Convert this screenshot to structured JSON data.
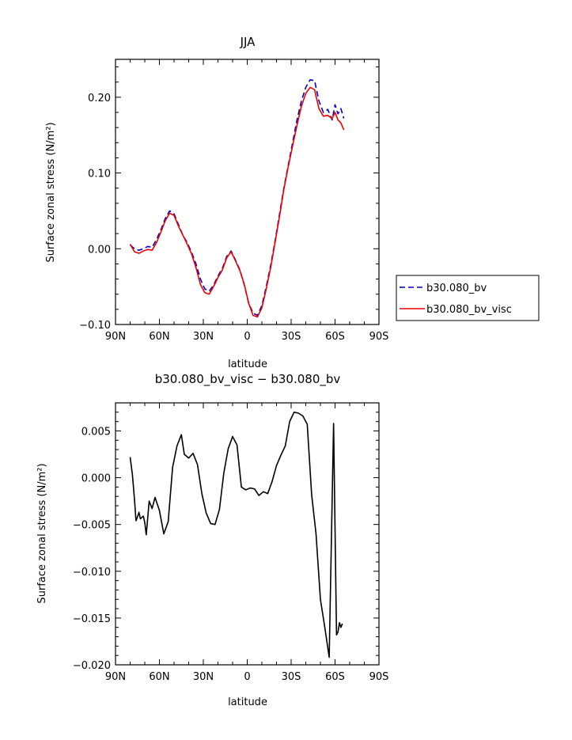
{
  "chart_data": [
    {
      "type": "line",
      "title": "JJA",
      "xlabel": "latitude",
      "ylabel": "Surface zonal stress (N/m²)",
      "xlim": [
        90,
        -90
      ],
      "ylim": [
        -0.1,
        0.25
      ],
      "x_ticks": [
        90,
        60,
        30,
        0,
        -30,
        -60,
        -90
      ],
      "x_tick_labels": [
        "90N",
        "60N",
        "30N",
        "0",
        "30S",
        "60S",
        "90S"
      ],
      "y_ticks": [
        -0.1,
        0.0,
        0.1,
        0.2
      ],
      "y_tick_labels": [
        "−0.10",
        "0.00",
        "0.10",
        "0.20"
      ],
      "legend": "right",
      "series": [
        {
          "name": "b30.080_bv",
          "color": "#0000cc",
          "dash": "dashed",
          "x": [
            80,
            77,
            74,
            71,
            68,
            65,
            62,
            59,
            56,
            53,
            50,
            47,
            44,
            41,
            38,
            35,
            32,
            29,
            26,
            23,
            20,
            17,
            14,
            11,
            8,
            5,
            2,
            -1,
            -4,
            -7,
            -10,
            -13,
            -16,
            -19,
            -22,
            -25,
            -28,
            -31,
            -34,
            -37,
            -40,
            -43,
            -46,
            -49,
            -52,
            -55,
            -58,
            -60,
            -62,
            -64,
            -66
          ],
          "y": [
            0.005,
            0.0,
            -0.002,
            0.0,
            0.003,
            0.002,
            0.012,
            0.025,
            0.04,
            0.05,
            0.046,
            0.032,
            0.018,
            0.008,
            -0.005,
            -0.02,
            -0.04,
            -0.053,
            -0.056,
            -0.048,
            -0.036,
            -0.026,
            -0.01,
            -0.003,
            -0.015,
            -0.028,
            -0.048,
            -0.072,
            -0.085,
            -0.088,
            -0.075,
            -0.05,
            -0.022,
            0.01,
            0.045,
            0.08,
            0.11,
            0.14,
            0.17,
            0.195,
            0.213,
            0.223,
            0.222,
            0.195,
            0.18,
            0.184,
            0.17,
            0.19,
            0.178,
            0.185,
            0.172
          ]
        },
        {
          "name": "b30.080_bv_visc",
          "color": "#ee0000",
          "dash": "solid",
          "x": [
            80,
            77,
            74,
            71,
            68,
            65,
            62,
            59,
            56,
            53,
            50,
            47,
            44,
            41,
            38,
            35,
            32,
            29,
            26,
            23,
            20,
            17,
            14,
            11,
            8,
            5,
            2,
            -1,
            -4,
            -7,
            -10,
            -13,
            -16,
            -19,
            -22,
            -25,
            -28,
            -31,
            -34,
            -37,
            -40,
            -43,
            -46,
            -49,
            -52,
            -55,
            -58,
            -60,
            -62,
            -64,
            -66
          ],
          "y": [
            0.006,
            -0.004,
            -0.006,
            -0.003,
            -0.001,
            -0.002,
            0.008,
            0.022,
            0.037,
            0.047,
            0.044,
            0.03,
            0.018,
            0.006,
            -0.007,
            -0.025,
            -0.047,
            -0.058,
            -0.06,
            -0.05,
            -0.038,
            -0.028,
            -0.012,
            -0.004,
            -0.016,
            -0.029,
            -0.047,
            -0.072,
            -0.088,
            -0.09,
            -0.078,
            -0.053,
            -0.025,
            0.008,
            0.042,
            0.078,
            0.108,
            0.136,
            0.163,
            0.188,
            0.205,
            0.213,
            0.21,
            0.185,
            0.175,
            0.176,
            0.172,
            0.18,
            0.17,
            0.166,
            0.157
          ]
        }
      ]
    },
    {
      "type": "line",
      "title": "b30.080_bv_visc − b30.080_bv",
      "xlabel": "latitude",
      "ylabel": "Surface zonal stress (N/m²)",
      "xlim": [
        90,
        -90
      ],
      "ylim": [
        -0.02,
        0.008
      ],
      "x_ticks": [
        90,
        60,
        30,
        0,
        -30,
        -60,
        -90
      ],
      "x_tick_labels": [
        "90N",
        "60N",
        "30N",
        "0",
        "30S",
        "60S",
        "90S"
      ],
      "y_ticks": [
        -0.02,
        -0.015,
        -0.01,
        -0.005,
        0.0,
        0.005
      ],
      "y_tick_labels": [
        "−0.020",
        "−0.015",
        "−0.010",
        "−0.005",
        "0.000",
        "0.005"
      ],
      "series": [
        {
          "color": "#000000",
          "dash": "solid",
          "x": [
            80,
            78.5,
            77,
            76,
            75,
            74,
            73,
            71,
            70,
            69,
            67,
            65,
            63,
            60,
            57,
            54,
            51,
            48,
            45,
            43,
            40,
            37,
            34,
            31,
            28,
            25,
            22,
            19,
            16,
            13,
            10,
            7,
            4,
            1,
            -2,
            -5,
            -8,
            -11,
            -14,
            -17,
            -20,
            -23,
            -26,
            -29,
            -32,
            -35,
            -38,
            -41,
            -44,
            -47,
            -50,
            -53,
            -56,
            -59,
            -61,
            -62,
            -63,
            -64,
            -65
          ],
          "y": [
            0.0022,
            0.0004,
            -0.0024,
            -0.0046,
            -0.0042,
            -0.0037,
            -0.0044,
            -0.0041,
            -0.0048,
            -0.0061,
            -0.0025,
            -0.0033,
            -0.0021,
            -0.0035,
            -0.006,
            -0.0047,
            0.0011,
            0.0034,
            0.0046,
            0.0025,
            0.0021,
            0.0026,
            0.0014,
            -0.0017,
            -0.0038,
            -0.0049,
            -0.005,
            -0.0034,
            0.0005,
            0.0031,
            0.0044,
            0.0035,
            -0.001,
            -0.0013,
            -0.0011,
            -0.0012,
            -0.0019,
            -0.0015,
            -0.0017,
            -0.0004,
            0.0013,
            0.0024,
            0.0034,
            0.006,
            0.007,
            0.0069,
            0.0066,
            0.0057,
            -0.0018,
            -0.006,
            -0.013,
            -0.016,
            -0.0192,
            0.0058,
            -0.0168,
            -0.0165,
            -0.0155,
            -0.016,
            -0.0156
          ]
        }
      ]
    }
  ]
}
